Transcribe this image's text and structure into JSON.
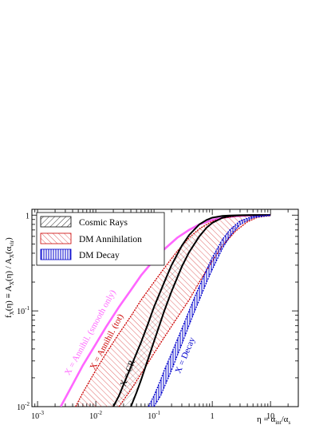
{
  "chart_data": {
    "type": "line",
    "title": "",
    "xlabel": "η = α_int/α_s",
    "xlabel_parts": {
      "base": "η = α",
      "sub1": "int",
      "mid": "/α",
      "sub2": "s"
    },
    "ylabel": "f_X(η) ≡ A_X(η) / A_X(α_vir)",
    "ylabel_parts": {
      "base": "f",
      "sub1": "X",
      "mid1": "(η) ≡ A",
      "sub2": "X",
      "mid2": "(η) / A",
      "sub3": "X",
      "mid3": "(α",
      "sub4": "vir",
      "end": ")"
    },
    "xscale": "log",
    "yscale": "log",
    "xlim": [
      0.0008,
      30
    ],
    "ylim": [
      0.01,
      1.15
    ],
    "xticks": [
      {
        "value": 0.001,
        "base": "10",
        "exp": "-3"
      },
      {
        "value": 0.01,
        "base": "10",
        "exp": "-2"
      },
      {
        "value": 0.1,
        "base": "10",
        "exp": "-1"
      },
      {
        "value": 1,
        "label": "1"
      },
      {
        "value": 10,
        "label": "10"
      }
    ],
    "yticks": [
      {
        "value": 0.01,
        "base": "10",
        "exp": "-2"
      },
      {
        "value": 0.1,
        "base": "10",
        "exp": "-1"
      },
      {
        "value": 1,
        "label": "1"
      }
    ],
    "legend": {
      "position": "top-left",
      "entries": [
        {
          "label": "Cosmic Rays",
          "color": "#000000",
          "pattern": "diagonal-hatch"
        },
        {
          "label": "DM Annihilation",
          "color": "#cc0000",
          "pattern": "diagonal-hatch"
        },
        {
          "label": "DM Decay",
          "color": "#0000cc",
          "pattern": "vertical-hatch"
        }
      ]
    },
    "series": [
      {
        "label": "X = Annihil. (smooth only)",
        "color": "#ff66ff",
        "kind": "thick-line",
        "label_at": [
          0.0035,
          0.021
        ],
        "label_rot": -61,
        "x": [
          0.0025,
          0.004,
          0.006,
          0.01,
          0.015,
          0.025,
          0.04,
          0.06,
          0.1,
          0.15,
          0.25,
          0.4,
          0.6,
          1,
          1.5,
          2.5,
          4,
          6,
          10
        ],
        "y": [
          0.01,
          0.017,
          0.027,
          0.045,
          0.068,
          0.11,
          0.165,
          0.235,
          0.34,
          0.44,
          0.58,
          0.7,
          0.8,
          0.89,
          0.94,
          0.975,
          0.99,
          0.997,
          1.0
        ]
      },
      {
        "label": "X = Annihil. (tot)",
        "color": "#cc0000",
        "kind": "band",
        "label_at": [
          0.0095,
          0.024
        ],
        "label_rot": -62,
        "x": [
          0.0045,
          0.006,
          0.01,
          0.015,
          0.025,
          0.04,
          0.06,
          0.1,
          0.15,
          0.25,
          0.4,
          0.6,
          1,
          1.5,
          2.5,
          4,
          6,
          10
        ],
        "upper": [
          0.01,
          0.014,
          0.024,
          0.036,
          0.058,
          0.088,
          0.13,
          0.2,
          0.28,
          0.42,
          0.58,
          0.72,
          0.86,
          0.93,
          0.975,
          0.99,
          0.997,
          1.0
        ],
        "lower": [
          null,
          null,
          null,
          null,
          0.01,
          0.015,
          0.022,
          0.036,
          0.053,
          0.085,
          0.13,
          0.2,
          0.33,
          0.48,
          0.68,
          0.85,
          0.95,
          0.99
        ]
      },
      {
        "label": "X = CR",
        "color": "#000000",
        "kind": "band-edges",
        "label_at": [
          0.032,
          0.016
        ],
        "label_rot": -69,
        "x": [
          0.02,
          0.025,
          0.03,
          0.04,
          0.05,
          0.06,
          0.08,
          0.1,
          0.15,
          0.2,
          0.3,
          0.4,
          0.6,
          0.8,
          1,
          1.5,
          2,
          3,
          5,
          10
        ],
        "upper": [
          0.01,
          0.013,
          0.017,
          0.026,
          0.036,
          0.047,
          0.075,
          0.11,
          0.2,
          0.3,
          0.48,
          0.62,
          0.8,
          0.89,
          0.94,
          0.98,
          0.99,
          0.997,
          1.0,
          1.0
        ],
        "lower": [
          null,
          null,
          null,
          0.01,
          0.014,
          0.019,
          0.032,
          0.048,
          0.1,
          0.16,
          0.29,
          0.41,
          0.6,
          0.74,
          0.83,
          0.94,
          0.975,
          0.995,
          1.0,
          1.0
        ]
      },
      {
        "label": "X = Decay",
        "color": "#0000cc",
        "kind": "band",
        "label_at": [
          0.28,
          0.022
        ],
        "label_rot": -67,
        "x": [
          0.08,
          0.1,
          0.13,
          0.15,
          0.2,
          0.25,
          0.3,
          0.4,
          0.5,
          0.6,
          0.8,
          1,
          1.5,
          2,
          3,
          5,
          10
        ],
        "upper": [
          0.01,
          0.013,
          0.019,
          0.024,
          0.036,
          0.05,
          0.065,
          0.1,
          0.14,
          0.18,
          0.27,
          0.36,
          0.56,
          0.7,
          0.87,
          0.97,
          1.0
        ],
        "lower": [
          null,
          0.01,
          0.013,
          0.016,
          0.024,
          0.034,
          0.045,
          0.071,
          0.1,
          0.13,
          0.2,
          0.27,
          0.45,
          0.6,
          0.8,
          0.94,
          0.995
        ]
      }
    ]
  }
}
